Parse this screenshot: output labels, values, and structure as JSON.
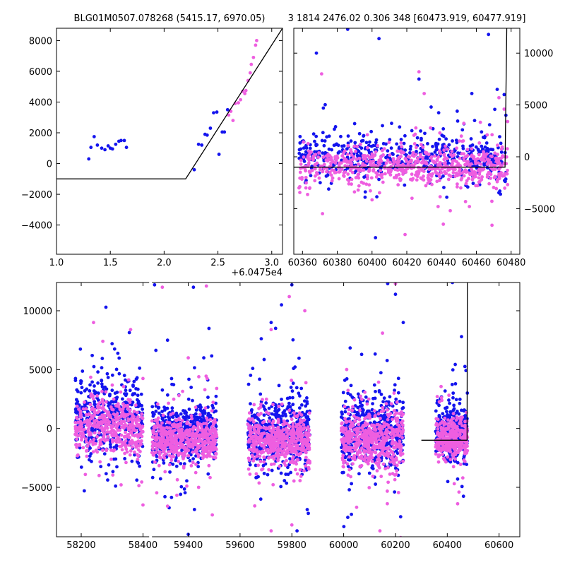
{
  "figure": {
    "title_left": "BLG01M0507.078268 (5415.17, 6970.05)",
    "title_right": "3 1814 2476.02 0.306 348 [60473.919, 60477.919]",
    "colors": {
      "blue": "#1414ee",
      "pink": "#ee5ee0",
      "model": "#000000"
    }
  },
  "chart_data": [
    {
      "id": "zoom",
      "type": "scatter",
      "xlim": [
        1.0,
        3.1
      ],
      "ylim": [
        -5900,
        8800
      ],
      "x_offset_label": "+6.0475e4",
      "xticks": [
        1.0,
        1.5,
        2.0,
        2.5,
        3.0
      ],
      "xtick_labels": [
        "1.0",
        "1.5",
        "2.0",
        "2.5",
        "3.0"
      ],
      "yticks": [
        -4000,
        -2000,
        0,
        2000,
        4000,
        6000,
        8000
      ],
      "ytick_labels": [
        "−4000",
        "−2000",
        "0",
        "2000",
        "4000",
        "6000",
        "8000"
      ],
      "series": [
        {
          "color": "blue",
          "points": [
            [
              1.3,
              300
            ],
            [
              1.32,
              1050
            ],
            [
              1.35,
              1750
            ],
            [
              1.38,
              1200
            ],
            [
              1.42,
              1000
            ],
            [
              1.45,
              900
            ],
            [
              1.48,
              1150
            ],
            [
              1.5,
              1000
            ],
            [
              1.52,
              950
            ],
            [
              1.55,
              1250
            ],
            [
              1.58,
              1450
            ],
            [
              1.6,
              1500
            ],
            [
              1.63,
              1500
            ],
            [
              1.65,
              1050
            ],
            [
              2.28,
              -400
            ],
            [
              2.32,
              1250
            ],
            [
              2.35,
              1200
            ],
            [
              2.38,
              1900
            ],
            [
              2.4,
              1850
            ],
            [
              2.43,
              2300
            ],
            [
              2.46,
              3300
            ],
            [
              2.49,
              3350
            ],
            [
              2.51,
              600
            ],
            [
              2.54,
              2050
            ],
            [
              2.56,
              2050
            ],
            [
              2.59,
              3500
            ]
          ]
        },
        {
          "color": "pink",
          "points": [
            [
              2.6,
              3150
            ],
            [
              2.62,
              3400
            ],
            [
              2.64,
              2800
            ],
            [
              2.66,
              3900
            ],
            [
              2.69,
              3950
            ],
            [
              2.71,
              4150
            ],
            [
              2.73,
              4700
            ],
            [
              2.75,
              4550
            ],
            [
              2.76,
              4750
            ],
            [
              2.78,
              5400
            ],
            [
              2.8,
              5900
            ],
            [
              2.81,
              6450
            ],
            [
              2.83,
              6900
            ],
            [
              2.85,
              7700
            ],
            [
              2.86,
              8000
            ]
          ]
        }
      ],
      "model": [
        [
          1.0,
          -1000
        ],
        [
          2.2,
          -1000
        ],
        [
          3.1,
          8800
        ]
      ]
    },
    {
      "id": "recent",
      "type": "scatter",
      "xlim": [
        60355,
        60485
      ],
      "ylim": [
        -9400,
        12400
      ],
      "xticks": [
        60360,
        60380,
        60400,
        60420,
        60440,
        60460,
        60480
      ],
      "xtick_labels": [
        "60360",
        "60380",
        "60400",
        "60420",
        "60440",
        "60460",
        "60480"
      ],
      "yticks": [
        -5000,
        0,
        5000,
        10000
      ],
      "ytick_labels": [
        "−5000",
        "0",
        "5000",
        "10000"
      ],
      "outliers": {
        "blue": [
          [
            60368,
            10000
          ],
          [
            60372,
            4700
          ],
          [
            60379,
            2900
          ],
          [
            60386,
            12300
          ],
          [
            60390,
            3200
          ],
          [
            60396,
            -3900
          ],
          [
            60402,
            -7800
          ],
          [
            60404,
            11400
          ],
          [
            60406,
            3000
          ],
          [
            60427,
            7500
          ],
          [
            60430,
            -900
          ],
          [
            60434,
            4800
          ],
          [
            60441,
            2700
          ],
          [
            60443,
            -3900
          ],
          [
            60449,
            4400
          ],
          [
            60452,
            2600
          ],
          [
            60459,
            3500
          ],
          [
            60463,
            2400
          ],
          [
            60467,
            11800
          ],
          [
            60472,
            6500
          ],
          [
            60476,
            6000
          ],
          [
            60477,
            4000
          ]
        ],
        "pink": [
          [
            60358,
            -3000
          ],
          [
            60362,
            -2000
          ],
          [
            60371,
            8000
          ],
          [
            60386,
            -2200
          ],
          [
            60415,
            -2700
          ],
          [
            60419,
            -7500
          ],
          [
            60423,
            -4000
          ],
          [
            60427,
            8200
          ],
          [
            60430,
            6100
          ],
          [
            60433,
            -2400
          ],
          [
            60438,
            -4800
          ],
          [
            60441,
            -6500
          ],
          [
            60445,
            -5200
          ],
          [
            60449,
            -2900
          ],
          [
            60452,
            1500
          ],
          [
            60456,
            -4800
          ],
          [
            60463,
            -2200
          ],
          [
            60469,
            -6600
          ],
          [
            60473,
            5700
          ],
          [
            60476,
            4600
          ],
          [
            60478,
            3400
          ]
        ]
      },
      "bands": [
        {
          "color": "blue",
          "x_range": [
            60358,
            60478
          ],
          "center": 0,
          "spread": 1100,
          "count": 520
        },
        {
          "color": "pink",
          "x_range": [
            60358,
            60478
          ],
          "center": -900,
          "spread": 900,
          "count": 650
        }
      ],
      "model": [
        [
          60355,
          -1000
        ],
        [
          60476.5,
          -1000
        ],
        [
          60477.5,
          12400
        ]
      ]
    },
    {
      "id": "full",
      "type": "scatter",
      "xlim": [
        58120,
        60680
      ],
      "ylim": [
        -9200,
        12400
      ],
      "xticks": [
        58200,
        58400,
        59400,
        59600,
        59800,
        60000,
        60200,
        60400,
        60600
      ],
      "xtick_labels": [
        "58200",
        "58400",
        "59400",
        "59600",
        "59800",
        "60000",
        "60200",
        "60400",
        "60600"
      ],
      "yticks": [
        -5000,
        0,
        5000,
        10000
      ],
      "ytick_labels": [
        "−5000",
        "0",
        "5000",
        "10000"
      ],
      "axis_break": [
        58420,
        59260
      ],
      "seasons": [
        {
          "x_range": [
            58180,
            58400
          ],
          "center": 200,
          "spread": 1500,
          "count": 420
        },
        {
          "x_range": [
            59260,
            59510
          ],
          "center": -900,
          "spread": 1100,
          "count": 520
        },
        {
          "x_range": [
            59630,
            59870
          ],
          "center": -900,
          "spread": 1300,
          "count": 500
        },
        {
          "x_range": [
            59990,
            60230
          ],
          "center": -900,
          "spread": 1400,
          "count": 500
        },
        {
          "x_range": [
            60355,
            60478
          ],
          "center": -900,
          "spread": 1100,
          "count": 320
        }
      ],
      "outliers": {
        "blue": [
          [
            58280,
            10300
          ],
          [
            58300,
            7200
          ],
          [
            58310,
            3000
          ],
          [
            58340,
            4500
          ],
          [
            58210,
            -5300
          ],
          [
            59270,
            12200
          ],
          [
            59420,
            12000
          ],
          [
            59480,
            8500
          ],
          [
            59320,
            7500
          ],
          [
            59460,
            6000
          ],
          [
            59310,
            -5800
          ],
          [
            59400,
            -9000
          ],
          [
            59760,
            10500
          ],
          [
            59800,
            12200
          ],
          [
            59720,
            9000
          ],
          [
            59680,
            -6000
          ],
          [
            59820,
            -8700
          ],
          [
            60170,
            12300
          ],
          [
            60200,
            11400
          ],
          [
            60230,
            9000
          ],
          [
            60030,
            -7300
          ],
          [
            60220,
            -7500
          ],
          [
            60420,
            12400
          ],
          [
            60455,
            7800
          ],
          [
            60440,
            -4300
          ]
        ],
        "pink": [
          [
            58270,
            7400
          ],
          [
            58360,
            8400
          ],
          [
            58240,
            9000
          ],
          [
            58400,
            -6500
          ],
          [
            59300,
            12000
          ],
          [
            59470,
            12100
          ],
          [
            59400,
            6000
          ],
          [
            59320,
            -6600
          ],
          [
            59440,
            -5000
          ],
          [
            59790,
            11200
          ],
          [
            59850,
            10000
          ],
          [
            59720,
            8400
          ],
          [
            59720,
            -8700
          ],
          [
            59800,
            -8200
          ],
          [
            60150,
            8100
          ],
          [
            60200,
            12300
          ],
          [
            60050,
            -6700
          ],
          [
            60140,
            -8700
          ],
          [
            60440,
            -6400
          ],
          [
            60460,
            -4200
          ]
        ]
      },
      "model": [
        [
          60300,
          -1000
        ],
        [
          60476.5,
          -1000
        ],
        [
          60477.5,
          12400
        ]
      ]
    }
  ]
}
